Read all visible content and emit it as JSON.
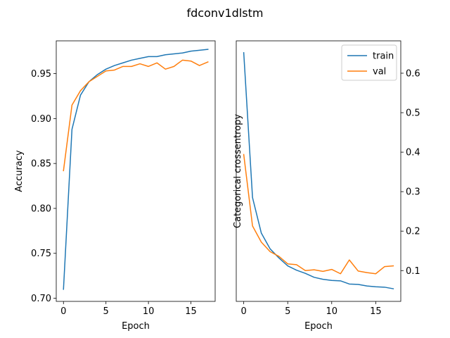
{
  "title": "fdconv1dlstm",
  "colors": {
    "train": "#1f77b4",
    "val": "#ff7f0e"
  },
  "chart_data": [
    {
      "type": "line",
      "xlabel": "Epoch",
      "ylabel": "Accuracy",
      "xlim": [
        -0.85,
        17.85
      ],
      "ylim": [
        0.6965,
        0.9865
      ],
      "y_axis_side": "left",
      "xticks": [
        0,
        5,
        10,
        15
      ],
      "yticks": [
        0.7,
        0.75,
        0.8,
        0.85,
        0.9,
        0.95
      ],
      "ytick_labels": [
        "0.70",
        "0.75",
        "0.80",
        "0.85",
        "0.90",
        "0.95"
      ],
      "legend": null,
      "x": [
        0,
        1,
        2,
        3,
        4,
        5,
        6,
        7,
        8,
        9,
        10,
        11,
        12,
        13,
        14,
        15,
        16,
        17
      ],
      "series": [
        {
          "name": "train",
          "values": [
            0.71,
            0.888,
            0.926,
            0.941,
            0.949,
            0.955,
            0.959,
            0.962,
            0.965,
            0.967,
            0.969,
            0.969,
            0.971,
            0.972,
            0.973,
            0.975,
            0.976,
            0.977
          ]
        },
        {
          "name": "val",
          "values": [
            0.842,
            0.915,
            0.931,
            0.941,
            0.947,
            0.953,
            0.954,
            0.958,
            0.958,
            0.961,
            0.958,
            0.962,
            0.955,
            0.958,
            0.965,
            0.964,
            0.959,
            0.963
          ]
        }
      ]
    },
    {
      "type": "line",
      "xlabel": "Epoch",
      "ylabel": "Categorical crossentropy",
      "xlim": [
        -0.85,
        17.85
      ],
      "ylim": [
        0.022,
        0.682
      ],
      "y_axis_side": "right",
      "xticks": [
        0,
        5,
        10,
        15
      ],
      "yticks": [
        0.1,
        0.2,
        0.3,
        0.4,
        0.5,
        0.6
      ],
      "ytick_labels": [
        "0.1",
        "0.2",
        "0.3",
        "0.4",
        "0.5",
        "0.6"
      ],
      "legend": "top-right",
      "x": [
        0,
        1,
        2,
        3,
        4,
        5,
        6,
        7,
        8,
        9,
        10,
        11,
        12,
        13,
        14,
        15,
        16,
        17
      ],
      "series": [
        {
          "name": "train",
          "values": [
            0.652,
            0.285,
            0.195,
            0.155,
            0.132,
            0.112,
            0.101,
            0.093,
            0.083,
            0.078,
            0.075,
            0.074,
            0.066,
            0.065,
            0.061,
            0.059,
            0.058,
            0.054
          ]
        },
        {
          "name": "val",
          "values": [
            0.394,
            0.213,
            0.172,
            0.148,
            0.136,
            0.117,
            0.115,
            0.1,
            0.102,
            0.098,
            0.103,
            0.092,
            0.127,
            0.099,
            0.095,
            0.092,
            0.11,
            0.112
          ]
        }
      ]
    }
  ]
}
